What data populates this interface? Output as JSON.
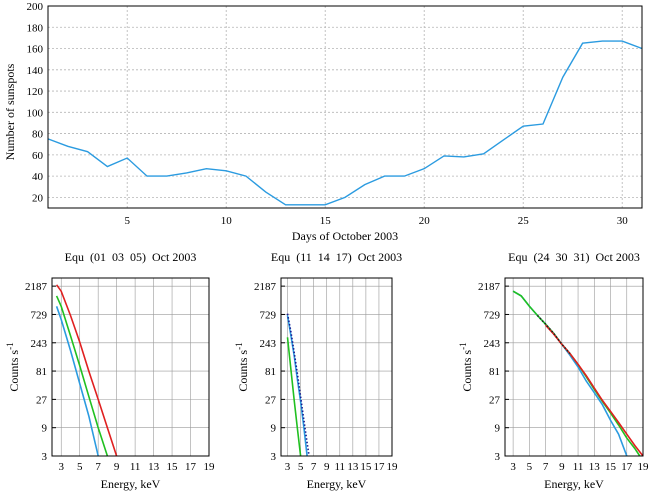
{
  "chart_data": [
    {
      "type": "line",
      "xlabel": "Days of October 2003",
      "ylabel": "Number of sunspots",
      "xlim": [
        1,
        31
      ],
      "ylim": [
        10,
        200
      ],
      "xticks": [
        "5",
        "10",
        "15",
        "20",
        "25",
        "30"
      ],
      "yticks": [
        "20",
        "40",
        "60",
        "80",
        "100",
        "120",
        "140",
        "160",
        "180",
        "200"
      ],
      "grid": true,
      "color": "#2b9be0",
      "x": [
        1,
        2,
        3,
        4,
        5,
        6,
        7,
        8,
        9,
        10,
        11,
        12,
        13,
        14,
        15,
        16,
        17,
        18,
        19,
        20,
        21,
        22,
        23,
        24,
        25,
        26,
        27,
        28,
        29,
        30,
        31
      ],
      "y": [
        75,
        68,
        63,
        49,
        57,
        40,
        40,
        43,
        47,
        45,
        40,
        25,
        13,
        13,
        13,
        20,
        32,
        40,
        40,
        47,
        59,
        58,
        61,
        74,
        87,
        89,
        133,
        165,
        167,
        167,
        160
      ]
    },
    {
      "type": "line",
      "title": "Equ  (01  03  05)  Oct 2003",
      "xlabel": "Energy, keV",
      "ylabel": "Counts s",
      "ylabel_sup": "-1",
      "yscale": "log3",
      "xlim": [
        2,
        19
      ],
      "ylim": [
        3,
        3000
      ],
      "xticks": [
        "3",
        "5",
        "7",
        "9",
        "11",
        "13",
        "15",
        "17",
        "19"
      ],
      "yticks": [
        "3",
        "9",
        "27",
        "81",
        "243",
        "729",
        "2187"
      ],
      "grid": true,
      "series": [
        {
          "color": "#e02020",
          "x": [
            2.5,
            3,
            4,
            5,
            6,
            7,
            8,
            9
          ],
          "y": [
            2300,
            1800,
            700,
            250,
            80,
            27,
            9,
            3
          ]
        },
        {
          "color": "#20c020",
          "x": [
            2.5,
            3,
            4,
            5,
            6,
            7,
            8
          ],
          "y": [
            1500,
            1000,
            320,
            100,
            30,
            9,
            3
          ]
        },
        {
          "color": "#2b9be0",
          "x": [
            2.5,
            3,
            4,
            5,
            6,
            7
          ],
          "y": [
            1000,
            600,
            180,
            50,
            14,
            3
          ]
        }
      ]
    },
    {
      "type": "line",
      "title": "Equ  (11  14  17)  Oct 2003",
      "xlabel": "Energy, keV",
      "ylabel": "Counts s",
      "ylabel_sup": "-1",
      "yscale": "log3",
      "xlim": [
        2,
        19
      ],
      "ylim": [
        3,
        3000
      ],
      "xticks": [
        "3",
        "5",
        "7",
        "9",
        "11",
        "13",
        "15",
        "17",
        "19"
      ],
      "yticks": [
        "3",
        "9",
        "27",
        "81",
        "243",
        "729",
        "2187"
      ],
      "grid": true,
      "series": [
        {
          "color": "#20c020",
          "x": [
            3,
            3.5,
            4,
            4.5,
            5
          ],
          "y": [
            300,
            90,
            27,
            9,
            3
          ]
        },
        {
          "color": "#2b9be0",
          "x": [
            3,
            3.5,
            4,
            4.5,
            5,
            5.5,
            6
          ],
          "y": [
            700,
            330,
            150,
            60,
            25,
            9,
            3
          ]
        },
        {
          "color": "#1a1a90",
          "dotted": true,
          "x": [
            3,
            3.5,
            4,
            4.5,
            5,
            5.5,
            6,
            6.3
          ],
          "y": [
            750,
            380,
            170,
            75,
            30,
            12,
            5,
            3
          ]
        }
      ]
    },
    {
      "type": "line",
      "title": "Equ  (24  30  31)  Oct 2003",
      "xlabel": "Energy, keV",
      "ylabel": "Counts s",
      "ylabel_sup": "-1",
      "yscale": "log3",
      "xlim": [
        2,
        19
      ],
      "ylim": [
        3,
        3000
      ],
      "xticks": [
        "3",
        "5",
        "7",
        "9",
        "11",
        "13",
        "15",
        "17",
        "19"
      ],
      "yticks": [
        "3",
        "9",
        "27",
        "81",
        "243",
        "729",
        "2187"
      ],
      "grid": true,
      "series": [
        {
          "color": "#2b9be0",
          "x": [
            3,
            4,
            5,
            6,
            7,
            8,
            9,
            10,
            11,
            12,
            13,
            14,
            15,
            16,
            17
          ],
          "y": [
            1800,
            1500,
            1000,
            700,
            500,
            350,
            230,
            150,
            95,
            55,
            35,
            22,
            12,
            7,
            3
          ]
        },
        {
          "color": "#20c020",
          "x": [
            3,
            4,
            5,
            6,
            7,
            8,
            9,
            10,
            11,
            12,
            13,
            14,
            15,
            16,
            17,
            18,
            18.6
          ],
          "y": [
            1800,
            1500,
            1000,
            700,
            500,
            350,
            230,
            160,
            105,
            65,
            40,
            25,
            16,
            10,
            6,
            4,
            3
          ]
        },
        {
          "color": "#e02020",
          "x": [
            7,
            8,
            9,
            10,
            11,
            12,
            13,
            14,
            15,
            16,
            17,
            18,
            19
          ],
          "y": [
            480,
            340,
            230,
            160,
            105,
            68,
            42,
            26,
            17,
            11,
            7,
            4.5,
            3
          ]
        },
        {
          "color": "#202020",
          "dotted": true,
          "x": [
            6,
            7,
            8,
            9,
            10
          ],
          "y": [
            700,
            500,
            350,
            230,
            160
          ]
        }
      ]
    }
  ]
}
